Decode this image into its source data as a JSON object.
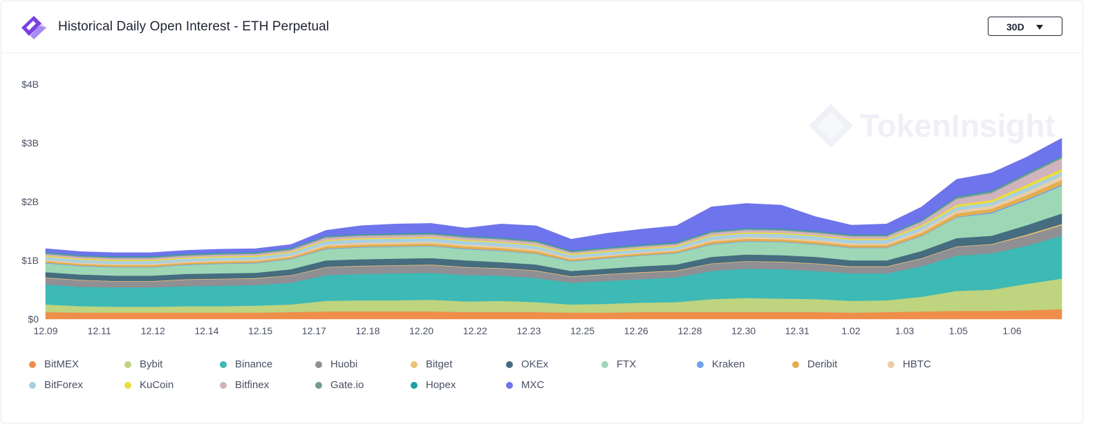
{
  "header": {
    "title": "Historical Daily Open Interest - ETH Perpetual",
    "range_label": "30D"
  },
  "watermark": "TokenInsight",
  "colors": {
    "BitMEX": "#ef8e4a",
    "Bybit": "#bed47f",
    "Binance": "#3db9b6",
    "Huobi": "#8f8f94",
    "Bitget": "#edc173",
    "OKEx": "#456c7f",
    "FTX": "#9ed7b6",
    "Kraken": "#6ea3ec",
    "Deribit": "#e3ae4f",
    "HBTC": "#eacda6",
    "BitForex": "#a9d0e1",
    "KuCoin": "#ecdc3c",
    "Bitfinex": "#d0b3bd",
    "Gate.io": "#749a96",
    "Hopex": "#1f9ea1",
    "MXC": "#6e74eb"
  },
  "chart_data": {
    "type": "area",
    "stacked": true,
    "title": "Historical Daily Open Interest - ETH Perpetual",
    "xlabel": "",
    "ylabel": "",
    "y_ticks": [
      "$0",
      "$1B",
      "$2B",
      "$3B",
      "$4B"
    ],
    "ylim": [
      0,
      4
    ],
    "y_unit": "B USD",
    "x_ticks": [
      "12.09",
      "12.11",
      "12.12",
      "12.14",
      "12.15",
      "12.17",
      "12.18",
      "12.20",
      "12.22",
      "12.23",
      "12.25",
      "12.26",
      "12.28",
      "12.30",
      "12.31",
      "1.02",
      "1.03",
      "1.05",
      "1.06"
    ],
    "x": [
      "12.09",
      "12.10",
      "12.11",
      "12.12",
      "12.13",
      "12.14",
      "12.15",
      "12.16",
      "12.17",
      "12.18",
      "12.19",
      "12.20",
      "12.21",
      "12.22",
      "12.23",
      "12.24",
      "12.25",
      "12.26",
      "12.27",
      "12.28",
      "12.29",
      "12.30",
      "12.31",
      "1.01",
      "1.02",
      "1.03",
      "1.04",
      "1.05",
      "1.06",
      "1.07"
    ],
    "series": [
      {
        "name": "BitMEX",
        "values": [
          0.12,
          0.11,
          0.11,
          0.11,
          0.11,
          0.11,
          0.11,
          0.12,
          0.13,
          0.13,
          0.13,
          0.13,
          0.12,
          0.12,
          0.12,
          0.11,
          0.11,
          0.12,
          0.12,
          0.12,
          0.12,
          0.12,
          0.12,
          0.11,
          0.12,
          0.13,
          0.14,
          0.14,
          0.15,
          0.17
        ]
      },
      {
        "name": "Bybit",
        "values": [
          0.13,
          0.11,
          0.1,
          0.1,
          0.11,
          0.11,
          0.12,
          0.13,
          0.18,
          0.19,
          0.19,
          0.2,
          0.18,
          0.19,
          0.17,
          0.14,
          0.15,
          0.16,
          0.17,
          0.22,
          0.24,
          0.23,
          0.22,
          0.2,
          0.2,
          0.25,
          0.34,
          0.36,
          0.45,
          0.52
        ]
      },
      {
        "name": "Binance",
        "values": [
          0.34,
          0.33,
          0.33,
          0.33,
          0.34,
          0.35,
          0.35,
          0.37,
          0.44,
          0.45,
          0.46,
          0.46,
          0.45,
          0.43,
          0.41,
          0.37,
          0.39,
          0.4,
          0.42,
          0.48,
          0.5,
          0.5,
          0.48,
          0.47,
          0.46,
          0.52,
          0.6,
          0.62,
          0.65,
          0.73
        ]
      },
      {
        "name": "Huobi",
        "values": [
          0.11,
          0.11,
          0.1,
          0.1,
          0.11,
          0.11,
          0.11,
          0.12,
          0.13,
          0.13,
          0.13,
          0.13,
          0.13,
          0.12,
          0.12,
          0.1,
          0.11,
          0.11,
          0.11,
          0.12,
          0.12,
          0.12,
          0.12,
          0.11,
          0.11,
          0.13,
          0.15,
          0.15,
          0.17,
          0.18
        ]
      },
      {
        "name": "Bitget",
        "values": [
          0.01,
          0.01,
          0.01,
          0.01,
          0.01,
          0.01,
          0.01,
          0.01,
          0.01,
          0.01,
          0.01,
          0.01,
          0.01,
          0.01,
          0.01,
          0.01,
          0.01,
          0.01,
          0.01,
          0.01,
          0.01,
          0.01,
          0.01,
          0.01,
          0.01,
          0.01,
          0.01,
          0.01,
          0.02,
          0.02
        ]
      },
      {
        "name": "OKEx",
        "values": [
          0.09,
          0.09,
          0.09,
          0.09,
          0.09,
          0.09,
          0.09,
          0.1,
          0.11,
          0.11,
          0.11,
          0.11,
          0.11,
          0.1,
          0.1,
          0.09,
          0.09,
          0.1,
          0.1,
          0.11,
          0.11,
          0.11,
          0.11,
          0.1,
          0.1,
          0.12,
          0.14,
          0.14,
          0.16,
          0.18
        ]
      },
      {
        "name": "FTX",
        "values": [
          0.15,
          0.14,
          0.14,
          0.14,
          0.15,
          0.16,
          0.16,
          0.17,
          0.19,
          0.2,
          0.2,
          0.2,
          0.19,
          0.19,
          0.18,
          0.16,
          0.17,
          0.18,
          0.19,
          0.21,
          0.22,
          0.22,
          0.21,
          0.21,
          0.21,
          0.25,
          0.35,
          0.38,
          0.42,
          0.47
        ]
      },
      {
        "name": "Kraken",
        "values": [
          0.01,
          0.01,
          0.01,
          0.01,
          0.01,
          0.01,
          0.01,
          0.01,
          0.01,
          0.01,
          0.01,
          0.01,
          0.01,
          0.01,
          0.01,
          0.01,
          0.01,
          0.01,
          0.01,
          0.01,
          0.01,
          0.01,
          0.01,
          0.01,
          0.01,
          0.01,
          0.01,
          0.02,
          0.02,
          0.02
        ]
      },
      {
        "name": "Deribit",
        "values": [
          0.03,
          0.03,
          0.03,
          0.03,
          0.03,
          0.03,
          0.03,
          0.03,
          0.04,
          0.04,
          0.04,
          0.04,
          0.04,
          0.04,
          0.04,
          0.03,
          0.03,
          0.03,
          0.03,
          0.04,
          0.04,
          0.04,
          0.04,
          0.04,
          0.04,
          0.05,
          0.06,
          0.06,
          0.07,
          0.08
        ]
      },
      {
        "name": "HBTC",
        "values": [
          0.02,
          0.02,
          0.02,
          0.02,
          0.02,
          0.02,
          0.02,
          0.02,
          0.03,
          0.03,
          0.03,
          0.03,
          0.03,
          0.03,
          0.03,
          0.02,
          0.02,
          0.02,
          0.02,
          0.03,
          0.03,
          0.03,
          0.03,
          0.03,
          0.03,
          0.04,
          0.05,
          0.05,
          0.06,
          0.07
        ]
      },
      {
        "name": "BitForex",
        "values": [
          0.05,
          0.05,
          0.05,
          0.05,
          0.05,
          0.05,
          0.05,
          0.05,
          0.06,
          0.06,
          0.06,
          0.06,
          0.06,
          0.06,
          0.06,
          0.05,
          0.05,
          0.05,
          0.05,
          0.06,
          0.06,
          0.06,
          0.06,
          0.06,
          0.06,
          0.06,
          0.06,
          0.06,
          0.07,
          0.07
        ]
      },
      {
        "name": "KuCoin",
        "values": [
          0.02,
          0.02,
          0.02,
          0.02,
          0.02,
          0.02,
          0.02,
          0.02,
          0.02,
          0.02,
          0.02,
          0.02,
          0.02,
          0.02,
          0.02,
          0.02,
          0.02,
          0.02,
          0.02,
          0.02,
          0.02,
          0.02,
          0.02,
          0.02,
          0.02,
          0.03,
          0.04,
          0.04,
          0.05,
          0.05
        ]
      },
      {
        "name": "Bitfinex",
        "values": [
          0.03,
          0.03,
          0.03,
          0.03,
          0.03,
          0.03,
          0.03,
          0.03,
          0.04,
          0.04,
          0.04,
          0.04,
          0.04,
          0.04,
          0.04,
          0.03,
          0.03,
          0.03,
          0.03,
          0.04,
          0.04,
          0.04,
          0.04,
          0.04,
          0.04,
          0.06,
          0.1,
          0.12,
          0.16,
          0.18
        ]
      },
      {
        "name": "Gate.io",
        "values": [
          0.02,
          0.02,
          0.02,
          0.02,
          0.02,
          0.02,
          0.02,
          0.02,
          0.02,
          0.02,
          0.02,
          0.02,
          0.02,
          0.02,
          0.02,
          0.02,
          0.02,
          0.02,
          0.02,
          0.02,
          0.02,
          0.02,
          0.02,
          0.02,
          0.02,
          0.02,
          0.03,
          0.03,
          0.03,
          0.03
        ]
      },
      {
        "name": "Hopex",
        "values": [
          0.01,
          0.01,
          0.01,
          0.01,
          0.01,
          0.01,
          0.01,
          0.01,
          0.01,
          0.01,
          0.01,
          0.01,
          0.01,
          0.01,
          0.01,
          0.01,
          0.01,
          0.01,
          0.01,
          0.01,
          0.01,
          0.01,
          0.01,
          0.01,
          0.01,
          0.01,
          0.01,
          0.01,
          0.01,
          0.01
        ]
      },
      {
        "name": "MXC",
        "values": [
          0.06,
          0.06,
          0.06,
          0.06,
          0.06,
          0.06,
          0.06,
          0.06,
          0.09,
          0.14,
          0.16,
          0.16,
          0.13,
          0.23,
          0.25,
          0.19,
          0.24,
          0.26,
          0.28,
          0.41,
          0.42,
          0.4,
          0.24,
          0.16,
          0.18,
          0.22,
          0.29,
          0.3,
          0.27,
          0.3
        ]
      }
    ]
  }
}
